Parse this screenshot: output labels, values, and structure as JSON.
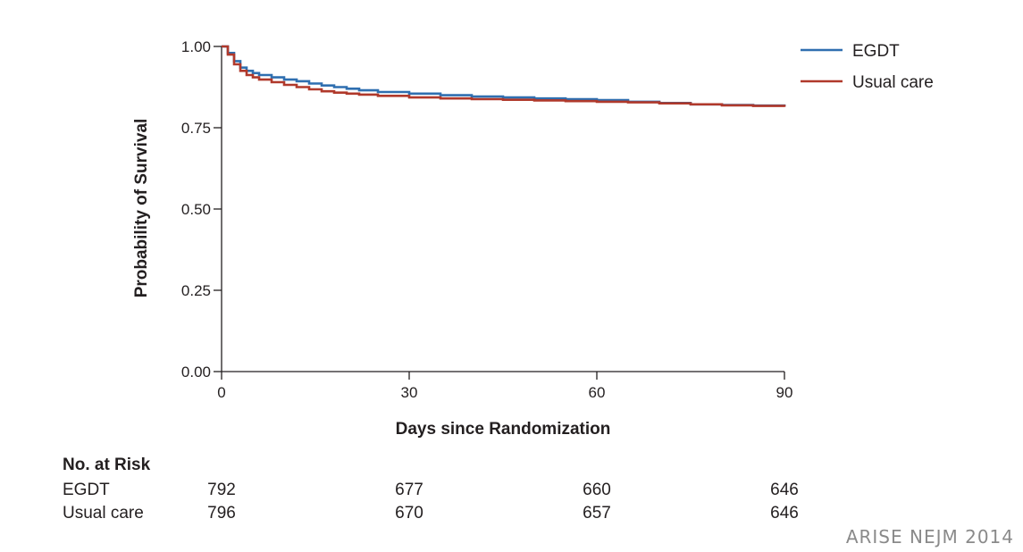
{
  "chart_data": {
    "type": "line",
    "subtype": "kaplan-meier",
    "xlabel": "Days since Randomization",
    "ylabel": "Probability of Survival",
    "xlim": [
      0,
      90
    ],
    "ylim": [
      0,
      1
    ],
    "x_ticks": [
      0,
      30,
      60,
      90
    ],
    "x_tick_labels": [
      "0",
      "30",
      "60",
      "90"
    ],
    "y_ticks": [
      0,
      0.25,
      0.5,
      0.75,
      1
    ],
    "y_tick_labels": [
      "0.00",
      "0.25",
      "0.50",
      "0.75",
      "1.00"
    ],
    "legend_position": "top-right",
    "series": [
      {
        "name": "EGDT",
        "color": "#2f6fb0",
        "x": [
          0,
          1,
          2,
          3,
          4,
          5,
          6,
          8,
          10,
          12,
          14,
          16,
          18,
          20,
          22,
          25,
          30,
          35,
          40,
          45,
          50,
          55,
          60,
          65,
          70,
          75,
          80,
          85,
          90
        ],
        "y": [
          1.0,
          0.98,
          0.955,
          0.935,
          0.925,
          0.918,
          0.912,
          0.905,
          0.898,
          0.893,
          0.886,
          0.88,
          0.875,
          0.87,
          0.865,
          0.86,
          0.855,
          0.85,
          0.846,
          0.843,
          0.84,
          0.838,
          0.835,
          0.83,
          0.826,
          0.822,
          0.82,
          0.818,
          0.816
        ]
      },
      {
        "name": "Usual care",
        "color": "#b0392b",
        "x": [
          0,
          1,
          2,
          3,
          4,
          5,
          6,
          8,
          10,
          12,
          14,
          16,
          18,
          20,
          22,
          25,
          30,
          35,
          40,
          45,
          50,
          55,
          60,
          65,
          70,
          75,
          80,
          85,
          90
        ],
        "y": [
          1.0,
          0.975,
          0.945,
          0.925,
          0.912,
          0.905,
          0.898,
          0.89,
          0.882,
          0.875,
          0.868,
          0.862,
          0.858,
          0.855,
          0.852,
          0.848,
          0.843,
          0.84,
          0.838,
          0.836,
          0.834,
          0.832,
          0.83,
          0.828,
          0.825,
          0.822,
          0.819,
          0.817,
          0.814
        ]
      }
    ]
  },
  "risk_table": {
    "title": "No. at Risk",
    "time_points": [
      0,
      30,
      60,
      90
    ],
    "rows": [
      {
        "label": "EGDT",
        "values": [
          "792",
          "677",
          "660",
          "646"
        ]
      },
      {
        "label": "Usual care",
        "values": [
          "796",
          "670",
          "657",
          "646"
        ]
      }
    ]
  },
  "watermark": "ARISE NEJM 2014"
}
